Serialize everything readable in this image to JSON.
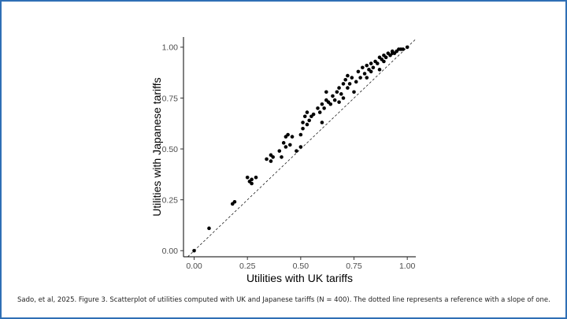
{
  "caption": "Sado, et al, 2025.  Figure 3. Scatterplot  of utilities computed with UK and Japanese tariffs (N = 400). The dotted line represents a reference with a slope of one.",
  "chart_data": {
    "type": "scatter",
    "title": "",
    "xlabel": "Utilities with UK tariffs",
    "ylabel": "Utilities with Japanese tariffs",
    "xlim": [
      -0.05,
      1.04
    ],
    "ylim": [
      -0.03,
      1.05
    ],
    "xticks": [
      0,
      0.25,
      0.5,
      0.75,
      1
    ],
    "xtick_labels": [
      "0.00",
      "0.25",
      "0.50",
      "0.75",
      "1.00"
    ],
    "yticks": [
      0,
      0.25,
      0.5,
      0.75,
      1
    ],
    "ytick_labels": [
      "0.00",
      "0.25",
      "0.50",
      "0.75",
      "1.00"
    ],
    "grid": false,
    "reference_line": {
      "slope": 1,
      "intercept": 0,
      "style": "dotted"
    },
    "colors": {
      "points": "#000000",
      "axis": "#000000",
      "frame": "#2f6fb5",
      "tick_text": "#4d4d4d"
    },
    "points": [
      [
        0.0,
        0.0
      ],
      [
        0.07,
        0.11
      ],
      [
        0.18,
        0.23
      ],
      [
        0.19,
        0.24
      ],
      [
        0.25,
        0.36
      ],
      [
        0.26,
        0.34
      ],
      [
        0.27,
        0.33
      ],
      [
        0.27,
        0.35
      ],
      [
        0.29,
        0.36
      ],
      [
        0.34,
        0.45
      ],
      [
        0.36,
        0.44
      ],
      [
        0.36,
        0.47
      ],
      [
        0.37,
        0.46
      ],
      [
        0.4,
        0.49
      ],
      [
        0.41,
        0.46
      ],
      [
        0.42,
        0.53
      ],
      [
        0.43,
        0.51
      ],
      [
        0.43,
        0.56
      ],
      [
        0.44,
        0.57
      ],
      [
        0.45,
        0.52
      ],
      [
        0.46,
        0.56
      ],
      [
        0.48,
        0.49
      ],
      [
        0.5,
        0.51
      ],
      [
        0.5,
        0.57
      ],
      [
        0.51,
        0.6
      ],
      [
        0.51,
        0.63
      ],
      [
        0.52,
        0.66
      ],
      [
        0.53,
        0.62
      ],
      [
        0.53,
        0.68
      ],
      [
        0.54,
        0.64
      ],
      [
        0.55,
        0.66
      ],
      [
        0.56,
        0.67
      ],
      [
        0.58,
        0.7
      ],
      [
        0.59,
        0.68
      ],
      [
        0.6,
        0.63
      ],
      [
        0.6,
        0.72
      ],
      [
        0.61,
        0.7
      ],
      [
        0.62,
        0.74
      ],
      [
        0.62,
        0.78
      ],
      [
        0.63,
        0.73
      ],
      [
        0.64,
        0.72
      ],
      [
        0.65,
        0.76
      ],
      [
        0.66,
        0.74
      ],
      [
        0.67,
        0.78
      ],
      [
        0.68,
        0.73
      ],
      [
        0.68,
        0.8
      ],
      [
        0.69,
        0.77
      ],
      [
        0.7,
        0.82
      ],
      [
        0.7,
        0.75
      ],
      [
        0.71,
        0.84
      ],
      [
        0.72,
        0.8
      ],
      [
        0.72,
        0.86
      ],
      [
        0.73,
        0.82
      ],
      [
        0.74,
        0.85
      ],
      [
        0.75,
        0.78
      ],
      [
        0.76,
        0.83
      ],
      [
        0.77,
        0.88
      ],
      [
        0.78,
        0.85
      ],
      [
        0.79,
        0.9
      ],
      [
        0.8,
        0.87
      ],
      [
        0.81,
        0.85
      ],
      [
        0.81,
        0.91
      ],
      [
        0.82,
        0.89
      ],
      [
        0.83,
        0.92
      ],
      [
        0.83,
        0.88
      ],
      [
        0.84,
        0.9
      ],
      [
        0.85,
        0.93
      ],
      [
        0.86,
        0.92
      ],
      [
        0.87,
        0.89
      ],
      [
        0.87,
        0.95
      ],
      [
        0.88,
        0.94
      ],
      [
        0.89,
        0.96
      ],
      [
        0.89,
        0.93
      ],
      [
        0.9,
        0.95
      ],
      [
        0.91,
        0.97
      ],
      [
        0.92,
        0.96
      ],
      [
        0.93,
        0.97
      ],
      [
        0.93,
        0.98
      ],
      [
        0.94,
        0.97
      ],
      [
        0.95,
        0.98
      ],
      [
        0.96,
        0.99
      ],
      [
        0.97,
        0.99
      ],
      [
        0.98,
        0.99
      ],
      [
        1.0,
        1.0
      ]
    ]
  }
}
